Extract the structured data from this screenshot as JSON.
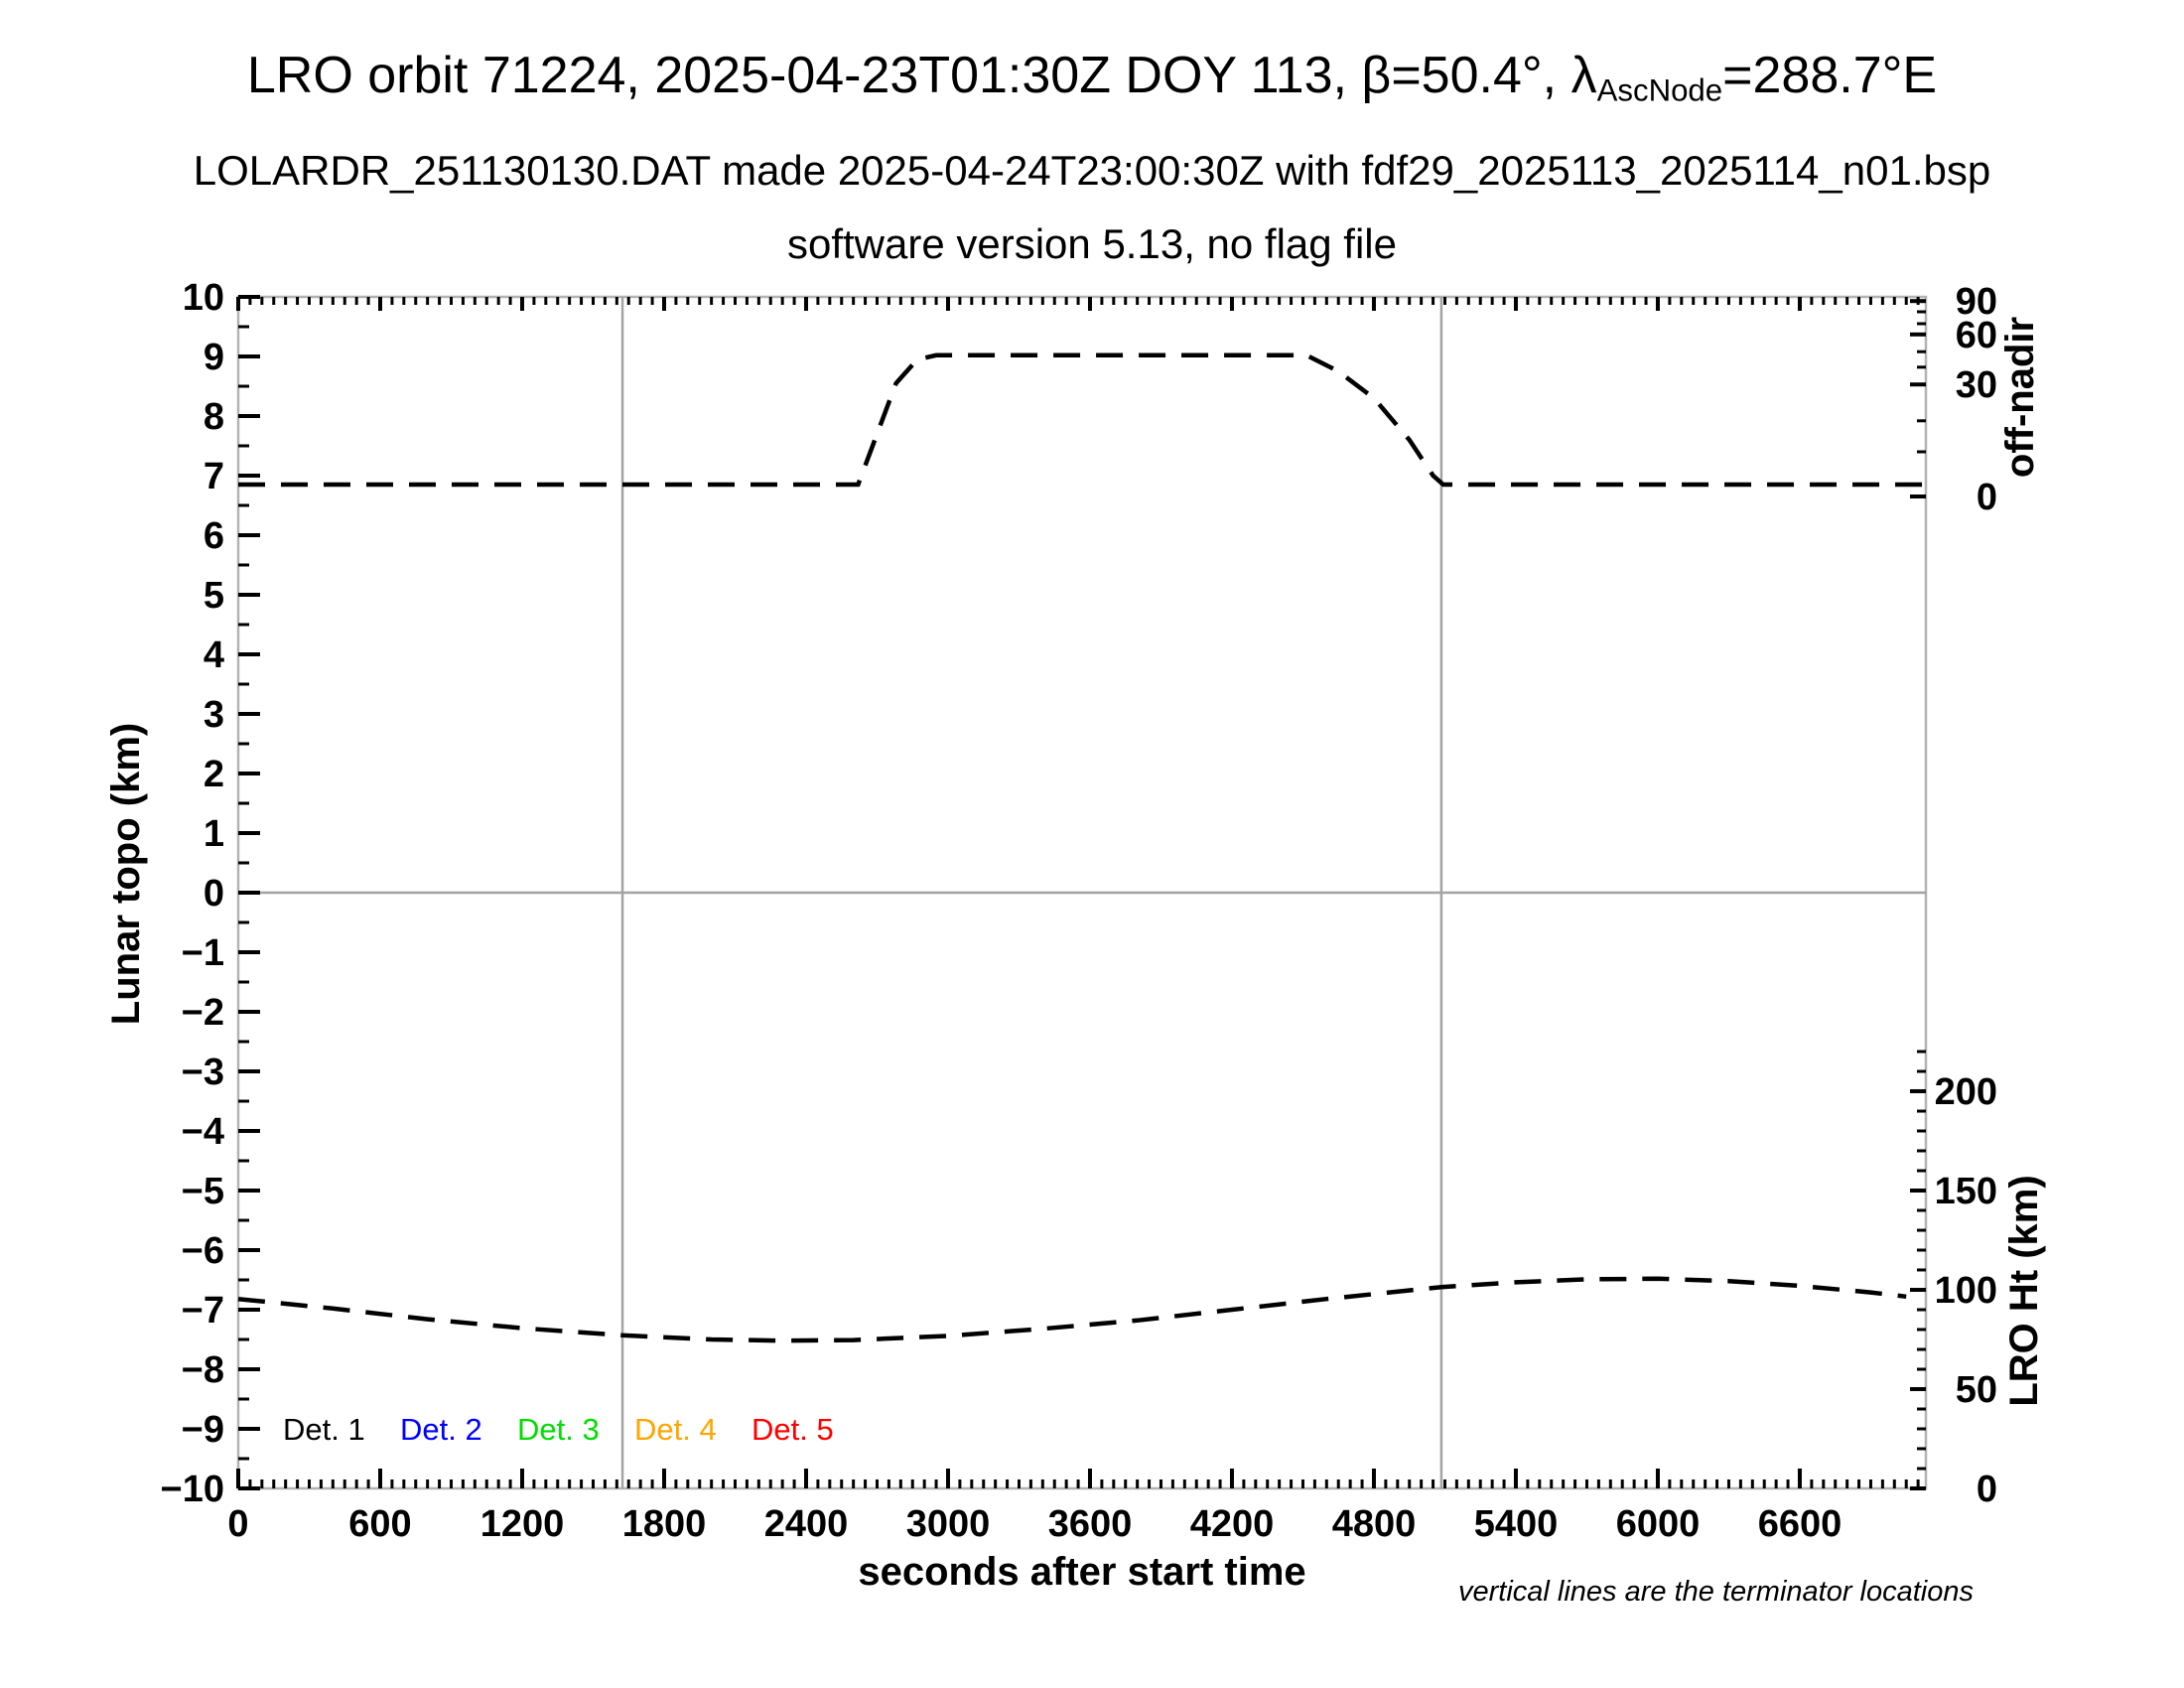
{
  "header": {
    "title_prefix": "LRO orbit 71224, 2025-04-23T01:30Z DOY 113, β=50.4°, λ",
    "title_subscript": "AscNode",
    "title_suffix": "=288.7°E",
    "subtitle": "LOLARDR_251130130.DAT made 2025-04-24T23:00:30Z with fdf29_2025113_2025114_n01.bsp",
    "software_line": "software version 5.13, no flag file"
  },
  "footnote": "vertical lines are the terminator locations",
  "chart_data": {
    "type": "line",
    "xlabel": "seconds after start time",
    "ylabel_left": "Lunar topo (km)",
    "x_axis": {
      "min": 0,
      "max": 7133,
      "major_tick_values": [
        0,
        600,
        1200,
        1800,
        2400,
        3000,
        3600,
        4200,
        4800,
        5400,
        6000,
        6600
      ],
      "tick_labels": [
        "0",
        "600",
        "1200",
        "1800",
        "2400",
        "3000",
        "3600",
        "4200",
        "4800",
        "5400",
        "6000",
        "6600"
      ],
      "minor_step": 50
    },
    "y_axis_left": {
      "min": -10,
      "max": 10,
      "major_step": 1,
      "minor_step": 0.5,
      "tick_labels": [
        "10",
        "9",
        "8",
        "7",
        "6",
        "5",
        "4",
        "3",
        "2",
        "1",
        "0",
        "−1",
        "−2",
        "−3",
        "−4",
        "−5",
        "−6",
        "−7",
        "−8",
        "−9",
        "−10"
      ],
      "zero_gridline": true
    },
    "right_axes": [
      {
        "title": "off-nadir",
        "ticks": [
          {
            "label": "90",
            "pos": 9.93
          },
          {
            "label": "60",
            "pos": 9.37
          },
          {
            "label": "30",
            "pos": 8.53
          },
          {
            "label": "0",
            "pos": 6.65
          }
        ],
        "minor_pos": [
          9.75,
          9.55,
          9.08,
          8.82,
          7.92,
          7.4
        ]
      },
      {
        "title": "LRO Ht (km)",
        "ticks": [
          {
            "label": "200",
            "pos": -3.333
          },
          {
            "label": "150",
            "pos": -5.0
          },
          {
            "label": "100",
            "pos": -6.667
          },
          {
            "label": "50",
            "pos": -8.333
          },
          {
            "label": "0",
            "pos": -10.0
          }
        ],
        "minor_pos": [
          -9.667,
          -9.333,
          -9.0,
          -8.667,
          -8.0,
          -7.667,
          -7.333,
          -7.0,
          -6.333,
          -6.0,
          -5.667,
          -5.333,
          -4.667,
          -4.333,
          -4.0,
          -3.667,
          -3.0,
          -2.667
        ]
      }
    ],
    "terminator_lines_sec": [
      1624,
      5085
    ],
    "series": [
      {
        "name": "off-nadir angle curve",
        "style": "dashed",
        "color": "#000000",
        "units": "left-axis display units (km scale)",
        "points": [
          [
            0,
            6.85
          ],
          [
            2620,
            6.85
          ],
          [
            2700,
            7.7
          ],
          [
            2780,
            8.55
          ],
          [
            2870,
            8.95
          ],
          [
            2950,
            9.02
          ],
          [
            4515,
            9.02
          ],
          [
            4650,
            8.75
          ],
          [
            4800,
            8.3
          ],
          [
            4950,
            7.6
          ],
          [
            5050,
            7.0
          ],
          [
            5093,
            6.85
          ],
          [
            7120,
            6.85
          ]
        ]
      },
      {
        "name": "LRO height curve",
        "style": "dashed",
        "color": "#000000",
        "units": "left-axis display units (km scale)",
        "points": [
          [
            0,
            -6.82
          ],
          [
            400,
            -6.98
          ],
          [
            800,
            -7.16
          ],
          [
            1200,
            -7.31
          ],
          [
            1624,
            -7.43
          ],
          [
            2000,
            -7.5
          ],
          [
            2300,
            -7.52
          ],
          [
            2600,
            -7.51
          ],
          [
            3000,
            -7.44
          ],
          [
            3400,
            -7.32
          ],
          [
            3800,
            -7.18
          ],
          [
            4200,
            -7.0
          ],
          [
            4600,
            -6.82
          ],
          [
            5085,
            -6.62
          ],
          [
            5400,
            -6.54
          ],
          [
            5700,
            -6.49
          ],
          [
            6000,
            -6.48
          ],
          [
            6300,
            -6.52
          ],
          [
            6600,
            -6.6
          ],
          [
            6900,
            -6.71
          ],
          [
            7050,
            -6.78
          ]
        ]
      }
    ],
    "legend": {
      "items": [
        {
          "label": "Det. 1",
          "color": "#000000"
        },
        {
          "label": "Det. 2",
          "color": "#0000ff"
        },
        {
          "label": "Det. 3",
          "color": "#00dd00"
        },
        {
          "label": "Det. 4",
          "color": "#ffa500"
        },
        {
          "label": "Det. 5",
          "color": "#ff0000"
        }
      ]
    },
    "colors": {
      "axis_frame": "#b3b3b3",
      "zero_gridline": "#a3a3a3",
      "terminator_line": "#a3a3a3",
      "ticks": "#000000",
      "text": "#000000"
    }
  }
}
